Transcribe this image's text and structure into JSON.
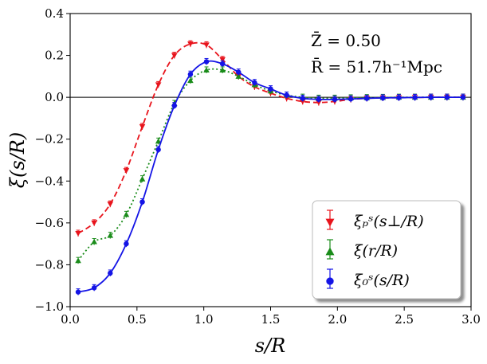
{
  "chart_data": {
    "type": "line",
    "xlabel": "s/R",
    "ylabel": "ξ(s/R)",
    "xlim": [
      0.0,
      3.0
    ],
    "ylim": [
      -1.0,
      0.4
    ],
    "xticks": [
      "0.0",
      "0.5",
      "1.0",
      "1.5",
      "2.0",
      "2.5",
      "3.0"
    ],
    "yticks": [
      "−1.0",
      "−0.8",
      "−0.6",
      "−0.4",
      "−0.2",
      "0.0",
      "0.2",
      "0.4"
    ],
    "xtick_values": [
      0.0,
      0.5,
      1.0,
      1.5,
      2.0,
      2.5,
      3.0
    ],
    "ytick_values": [
      -1.0,
      -0.8,
      -0.6,
      -0.4,
      -0.2,
      0.0,
      0.2,
      0.4
    ],
    "annotations": [
      "Z̄ = 0.50",
      "R̄ = 51.7h⁻¹Mpc"
    ],
    "legend_position": "bottom-right",
    "series": [
      {
        "name": "ξ_p^s(s⊥/R)",
        "legend": "ξₚˢ(s⊥/R)",
        "color": "#e8141c",
        "marker": "triangle-down",
        "line": "dashed",
        "x": [
          0.06,
          0.18,
          0.3,
          0.42,
          0.54,
          0.66,
          0.78,
          0.9,
          1.02,
          1.14,
          1.26,
          1.38,
          1.5,
          1.62,
          1.74,
          1.86,
          1.98,
          2.1,
          2.22,
          2.34,
          2.46,
          2.58,
          2.7,
          2.82,
          2.94
        ],
        "y": [
          -0.65,
          -0.6,
          -0.51,
          -0.35,
          -0.14,
          0.06,
          0.2,
          0.255,
          0.25,
          0.18,
          0.1,
          0.05,
          0.02,
          -0.005,
          -0.02,
          -0.025,
          -0.02,
          -0.01,
          -0.005,
          -0.003,
          -0.002,
          -0.001,
          0.0,
          0.0,
          0.0
        ]
      },
      {
        "name": "ξ(r/R)",
        "legend": "ξ(r/R)",
        "color": "#1a8c1a",
        "marker": "triangle-up",
        "line": "dotted",
        "x": [
          0.06,
          0.18,
          0.3,
          0.42,
          0.54,
          0.66,
          0.78,
          0.9,
          1.02,
          1.14,
          1.26,
          1.38,
          1.5,
          1.62,
          1.74,
          1.86,
          1.98,
          2.1,
          2.22,
          2.34,
          2.46,
          2.58,
          2.7,
          2.82,
          2.94
        ],
        "y": [
          -0.78,
          -0.69,
          -0.66,
          -0.56,
          -0.39,
          -0.21,
          -0.03,
          0.08,
          0.13,
          0.13,
          0.1,
          0.06,
          0.03,
          0.01,
          0.0,
          -0.005,
          -0.005,
          -0.003,
          -0.002,
          -0.001,
          0.0,
          0.0,
          0.0,
          0.0,
          0.0
        ]
      },
      {
        "name": "ξ_0^s(s/R)",
        "legend": "ξ₀ˢ(s/R)",
        "color": "#1414e6",
        "marker": "circle",
        "line": "solid",
        "x": [
          0.06,
          0.18,
          0.3,
          0.42,
          0.54,
          0.66,
          0.78,
          0.9,
          1.02,
          1.14,
          1.26,
          1.38,
          1.5,
          1.62,
          1.74,
          1.86,
          1.98,
          2.1,
          2.22,
          2.34,
          2.46,
          2.58,
          2.7,
          2.82,
          2.94
        ],
        "y": [
          -0.93,
          -0.91,
          -0.84,
          -0.7,
          -0.5,
          -0.25,
          -0.04,
          0.11,
          0.17,
          0.16,
          0.12,
          0.07,
          0.04,
          0.01,
          -0.005,
          -0.01,
          -0.01,
          -0.008,
          -0.005,
          -0.003,
          -0.002,
          -0.001,
          0.0,
          0.0,
          0.0
        ]
      }
    ]
  }
}
